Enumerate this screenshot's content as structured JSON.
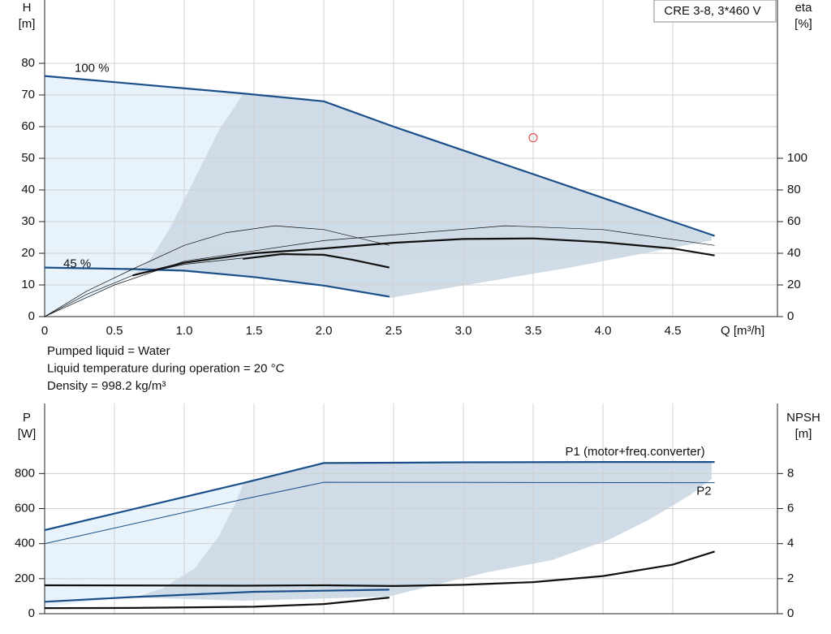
{
  "chart_data": [
    {
      "type": "line",
      "title": "CRE 3-8, 3*460 V",
      "ylabel": [
        "H",
        "[m]"
      ],
      "y2label": [
        "eta",
        "[%]"
      ],
      "xlabel": "Q [m³/h]",
      "xlim": [
        0,
        5.25
      ],
      "xticks": [
        0,
        {
          "value": 0.5,
          "label": "0.5"
        },
        {
          "value": 1,
          "label": "1.0"
        },
        {
          "value": 1.5,
          "label": "1.5"
        },
        {
          "value": 2,
          "label": "2.0"
        },
        {
          "value": 2.5,
          "label": "2.5"
        },
        {
          "value": 3,
          "label": "3.0"
        },
        {
          "value": 3.5,
          "label": "3.5"
        },
        {
          "value": 4,
          "label": "4.0"
        },
        {
          "value": 4.5,
          "label": "4.5"
        }
      ],
      "ylim": [
        0,
        100
      ],
      "yticks": [
        0,
        10,
        20,
        30,
        40,
        50,
        60,
        70,
        80
      ],
      "y2lim": [
        0,
        200
      ],
      "y2ticks": [
        0,
        20,
        40,
        60,
        80,
        100
      ],
      "grid": true,
      "series": [
        {
          "name": "100 %",
          "color": "#1a4f8a",
          "width": 2.2,
          "x": [
            0,
            1.42,
            2.0,
            2.5,
            3.0,
            3.5,
            4.0,
            4.5,
            4.8
          ],
          "values": [
            76,
            70.5,
            68,
            60,
            52.5,
            45,
            37.5,
            30,
            25.5
          ]
        },
        {
          "name": "45 %",
          "color": "#1a4f8a",
          "width": 2.2,
          "x": [
            0,
            0.63,
            1.0,
            1.5,
            2.0,
            2.47
          ],
          "values": [
            15.5,
            15,
            14.5,
            12.5,
            9.8,
            6.3
          ]
        },
        {
          "color": "#111111",
          "width": 2.2,
          "axis": "y2",
          "x": [
            0.63,
            1.0,
            1.5,
            2.0,
            2.5,
            3.0,
            3.5,
            4.0,
            4.5,
            4.8
          ],
          "values": [
            26,
            34,
            40,
            43,
            46.6,
            49,
            49.4,
            47,
            43,
            38.6
          ]
        },
        {
          "color": "#111111",
          "width": 2.2,
          "axis": "y2",
          "x": [
            1.42,
            1.7,
            2.0,
            2.2,
            2.47
          ],
          "values": [
            36.5,
            39.5,
            39,
            36,
            31
          ]
        },
        {
          "color": "#111111",
          "width": 0.7,
          "axis": "y2",
          "x": [
            0,
            0.3,
            0.63,
            1.0,
            1.3,
            1.65,
            2.0,
            2.47
          ],
          "values": [
            0,
            16,
            30,
            45,
            53,
            57.4,
            55,
            45
          ]
        },
        {
          "color": "#111111",
          "width": 0.7,
          "axis": "y2",
          "x": [
            0,
            0.5,
            1.0,
            2.0,
            3.3,
            4.0,
            4.8
          ],
          "values": [
            0,
            20,
            35,
            48,
            57.4,
            55,
            45
          ]
        },
        {
          "color": "#111111",
          "width": 0.7,
          "axis": "y2",
          "x": [
            0,
            0.3,
            0.63,
            1.0,
            1.42
          ],
          "values": [
            0,
            14,
            26,
            33,
            37
          ]
        }
      ],
      "point": {
        "x": 3.5,
        "y": 56.5,
        "color": "#e03030"
      },
      "annotations": [
        "Pumped liquid = Water",
        "Liquid temperature during operation = 20 °C",
        "Density = 998.2 kg/m³"
      ]
    },
    {
      "type": "line",
      "ylabel": [
        "P",
        "[W]"
      ],
      "y2label": [
        "NPSH",
        "[m]"
      ],
      "xlim": [
        0,
        5.25
      ],
      "ylim": [
        0,
        1200
      ],
      "yticks": [
        0,
        200,
        400,
        600,
        800
      ],
      "y2lim": [
        0,
        12
      ],
      "y2ticks": [
        0,
        2,
        4,
        6,
        8
      ],
      "grid": true,
      "series": [
        {
          "name": "P1 (motor+freq.converter)",
          "color": "#1a4f8a",
          "width": 2.2,
          "x": [
            0,
            1.42,
            2.0,
            2.5,
            3.0,
            4.0,
            4.8
          ],
          "values": [
            477,
            745,
            860,
            862,
            864,
            866,
            866
          ]
        },
        {
          "name": "P2",
          "color": "#1a4f8a",
          "width": 1,
          "x": [
            0,
            1.42,
            2.0,
            3.0,
            4.8
          ],
          "values": [
            400,
            653,
            750,
            749,
            748
          ]
        },
        {
          "color": "#111111",
          "width": 2.2,
          "axis": "y2",
          "x": [
            0,
            1.42,
            2.0,
            2.5,
            3.0,
            3.5,
            4.0,
            4.5,
            4.8
          ],
          "values": [
            1.62,
            1.6,
            1.62,
            1.58,
            1.65,
            1.8,
            2.15,
            2.8,
            3.55
          ]
        },
        {
          "color": "#111111",
          "width": 2.2,
          "axis": "y2",
          "x": [
            0,
            0.63,
            1.5,
            2.0,
            2.47
          ],
          "values": [
            0.32,
            0.33,
            0.4,
            0.55,
            0.92
          ]
        },
        {
          "color": "#1a4f8a",
          "width": 2.2,
          "x": [
            0,
            0.63,
            1.5,
            2.47
          ],
          "values": [
            68,
            95,
            125,
            137
          ]
        }
      ]
    }
  ]
}
